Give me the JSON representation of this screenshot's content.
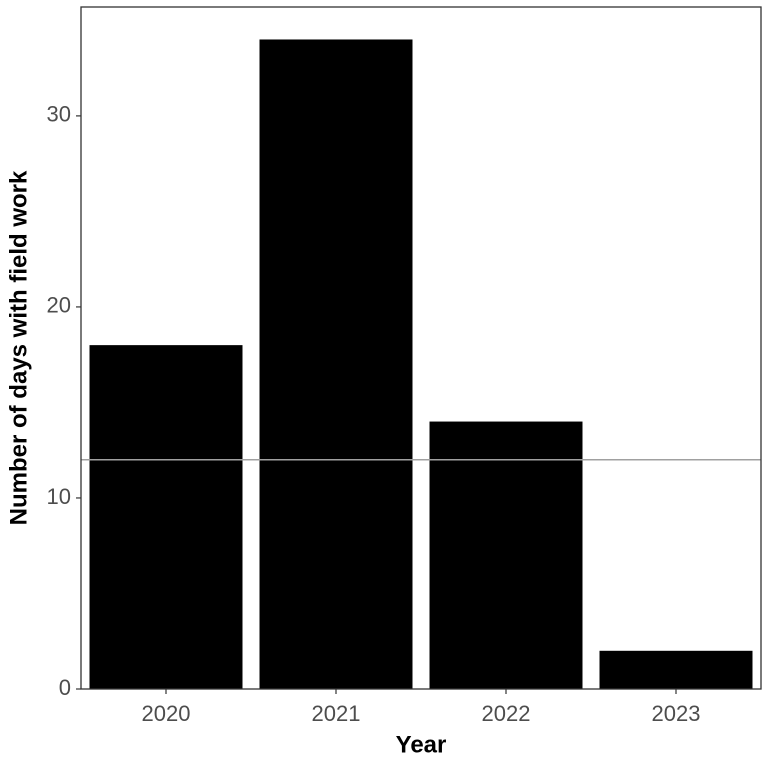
{
  "chart_data": {
    "type": "bar",
    "x_label": "Year",
    "y_label": "Number of days with field work",
    "categories": [
      "2020",
      "2021",
      "2022",
      "2023"
    ],
    "values": [
      18,
      34,
      14,
      2
    ],
    "color": "#000000",
    "ylim": [
      0,
      35.7
    ],
    "yticks": [
      0,
      10,
      20,
      30
    ],
    "reference_line": 12,
    "reference_line_color": "#a0a0a0"
  }
}
